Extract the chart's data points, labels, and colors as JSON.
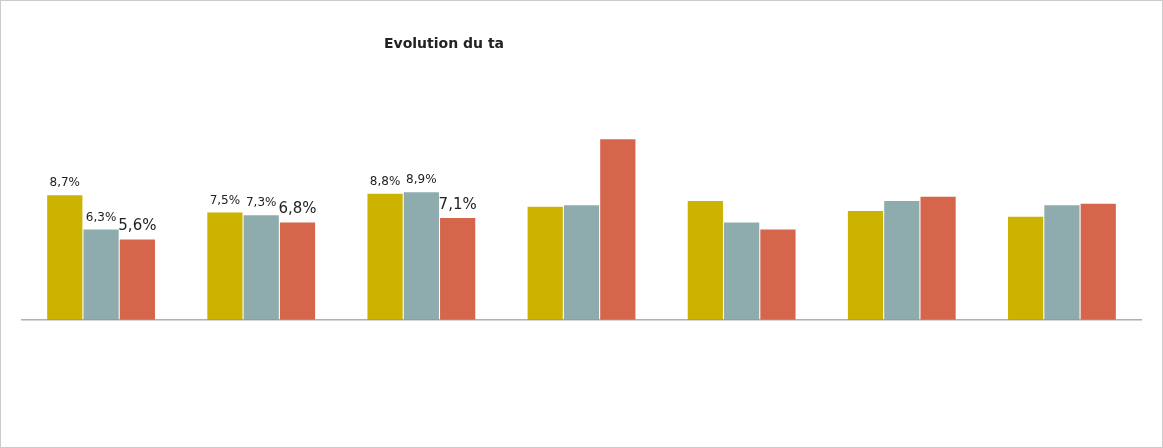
{
  "chart_data": {
    "type": "bar",
    "title": "Evolution du ta",
    "categories": [
      null,
      null,
      null,
      null,
      null,
      null,
      null
    ],
    "series": [
      {
        "color": "#cbb300",
        "values": [
          8.7,
          7.5,
          8.8,
          7.9,
          8.3,
          7.6,
          7.2
        ],
        "value_labels": [
          "8,7%",
          "7,5%",
          "8,8%",
          null,
          null,
          null,
          null
        ]
      },
      {
        "color": "#8eacae",
        "values": [
          6.3,
          7.3,
          8.9,
          8.0,
          6.8,
          8.3,
          8.0
        ],
        "value_labels": [
          "6,3%",
          "7,3%",
          "8,9%",
          null,
          null,
          null,
          null
        ]
      },
      {
        "color": "#d5664c",
        "values": [
          5.6,
          6.8,
          7.1,
          12.6,
          6.3,
          8.6,
          8.1
        ],
        "value_labels": [
          "5,6%",
          "6,8%",
          "7,1%",
          null,
          null,
          null,
          null
        ]
      }
    ]
  }
}
